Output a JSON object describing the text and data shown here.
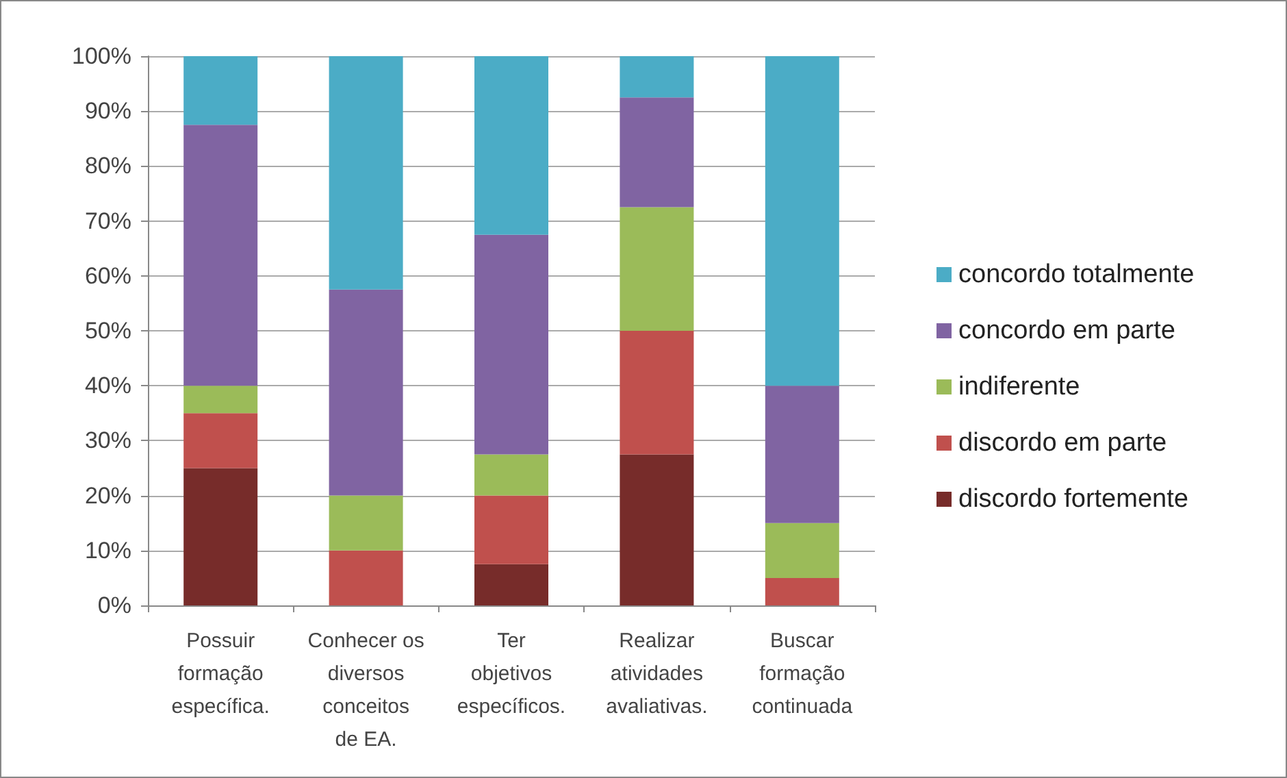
{
  "chart_data": {
    "type": "bar",
    "stacked": true,
    "categories": [
      "Possuir\nformação\nespecífica.",
      "Conhecer os\ndiversos\nconceitos\nde EA.",
      "Ter\nobjetivos\nespecíficos.",
      "Realizar\natividades\navaliativas.",
      "Buscar\nformação\ncontinuada"
    ],
    "series": [
      {
        "name": "discordo fortemente",
        "color": "#772c2a",
        "values": [
          25,
          0,
          7.5,
          27.5,
          0
        ]
      },
      {
        "name": "discordo em parte",
        "color": "#c0504d",
        "values": [
          10,
          10,
          12.5,
          22.5,
          5
        ]
      },
      {
        "name": "indiferente",
        "color": "#9bbb59",
        "values": [
          5,
          10,
          7.5,
          22.5,
          10
        ]
      },
      {
        "name": "concordo em parte",
        "color": "#8064a2",
        "values": [
          47.5,
          37.5,
          40,
          20,
          25
        ]
      },
      {
        "name": "concordo totalmente",
        "color": "#4bacc6",
        "values": [
          12.5,
          42.5,
          32.5,
          7.5,
          60
        ]
      }
    ],
    "ylim": [
      0,
      100
    ],
    "yticks": [
      {
        "value": 0,
        "label": "0%"
      },
      {
        "value": 10,
        "label": "10%"
      },
      {
        "value": 20,
        "label": "20%"
      },
      {
        "value": 30,
        "label": "30%"
      },
      {
        "value": 40,
        "label": "40%"
      },
      {
        "value": 50,
        "label": "50%"
      },
      {
        "value": 60,
        "label": "60%"
      },
      {
        "value": 70,
        "label": "70%"
      },
      {
        "value": 80,
        "label": "80%"
      },
      {
        "value": 90,
        "label": "90%"
      },
      {
        "value": 100,
        "label": "100%"
      }
    ],
    "grid": "y",
    "legend": "right"
  }
}
